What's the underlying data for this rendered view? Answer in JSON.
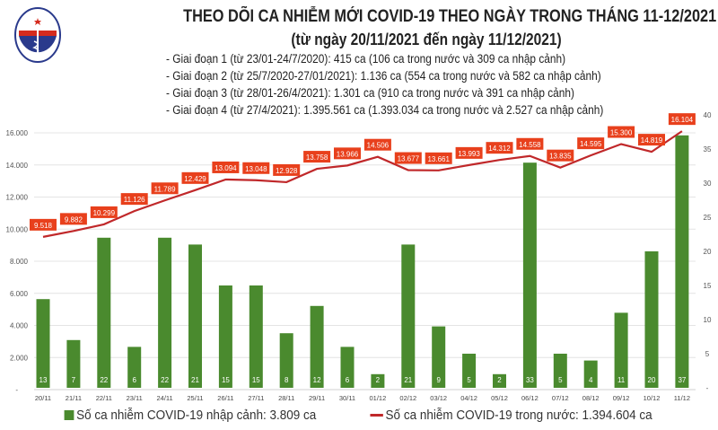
{
  "header": {
    "title": "THEO DÕI CA NHIỄM MỚI COVID-19 THEO NGÀY TRONG THÁNG 11-12/2021",
    "subtitle": "(từ ngày 20/11/2021 đến ngày 11/12/2021)",
    "stages": [
      "- Giai đoạn 1 (từ 23/01-24/7/2020): 415 ca (106 ca trong nước và 309 ca nhập cảnh)",
      "- Giai đoạn 2 (từ 25/7/2020-27/01/2021): 1.136 ca (554 ca trong nước và 582 ca nhập cảnh)",
      "- Giai đoạn 3 (từ 28/01-26/4/2021): 1.301 ca (910 ca trong nước và 391 ca nhập cảnh)",
      "- Giai đoạn 4 (từ 27/4/2021): 1.395.561 ca (1.393.034 ca trong nước và 2.527 ca nhập cảnh)"
    ],
    "logo_text": "BỘ Y TẾ · MINISTRY OF HEALTH"
  },
  "colors": {
    "bar": "#4a8a2e",
    "line": "#c0282a",
    "label_bg": "#e8401c"
  },
  "chart_data": {
    "type": "bar+line",
    "categories": [
      "20/11",
      "21/11",
      "22/11",
      "23/11",
      "24/11",
      "25/11",
      "26/11",
      "27/11",
      "28/11",
      "29/11",
      "30/11",
      "01/12",
      "02/12",
      "03/12",
      "04/12",
      "05/12",
      "06/12",
      "07/12",
      "08/12",
      "09/12",
      "10/12",
      "11/12"
    ],
    "series": [
      {
        "name": "Số ca nhiễm COVID-19 nhập cảnh: 3.809 ca",
        "type": "bar",
        "axis": "right",
        "values": [
          13,
          7,
          22,
          6,
          22,
          21,
          15,
          15,
          8,
          12,
          6,
          2,
          21,
          9,
          5,
          2,
          33,
          5,
          4,
          11,
          20,
          37
        ]
      },
      {
        "name": "Số ca nhiễm COVID-19 trong nước: 1.394.604 ca",
        "type": "line",
        "axis": "left",
        "values": [
          9518,
          9882,
          10299,
          11126,
          11789,
          12429,
          13094,
          13048,
          12928,
          13758,
          13966,
          14506,
          13677,
          13661,
          13993,
          14312,
          14558,
          13835,
          14595,
          15300,
          14819,
          16104
        ]
      }
    ],
    "left_axis": {
      "ylim": [
        0,
        16000
      ],
      "ticks": [
        "-",
        "2.000",
        "4.000",
        "6.000",
        "8.000",
        "10.000",
        "12.000",
        "14.000",
        "16.000"
      ]
    },
    "right_axis": {
      "ylim": [
        0,
        40
      ],
      "ticks": [
        "-",
        "5",
        "10",
        "15",
        "20",
        "25",
        "30",
        "35",
        "40"
      ]
    },
    "grid": true,
    "legend": "bottom"
  }
}
